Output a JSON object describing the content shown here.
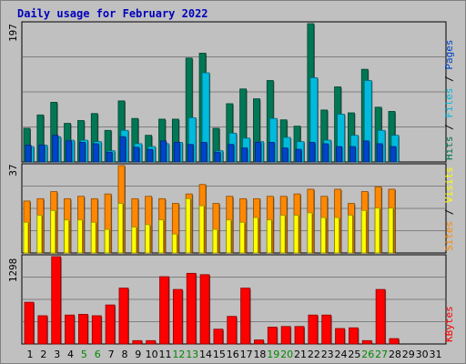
{
  "chart_data": {
    "title": "Daily usage for February 2022",
    "type": "bar",
    "categories": [
      "1",
      "2",
      "3",
      "4",
      "5",
      "6",
      "7",
      "8",
      "9",
      "10",
      "11",
      "12",
      "13",
      "14",
      "15",
      "16",
      "17",
      "18",
      "19",
      "20",
      "21",
      "22",
      "23",
      "24",
      "25",
      "26",
      "27",
      "28",
      "29",
      "30",
      "31"
    ],
    "weekend_color": "#008800",
    "weekend_days": [
      "5",
      "6",
      "12",
      "13",
      "19",
      "20",
      "26",
      "27"
    ],
    "colors": {
      "hits": "#007755",
      "files": "#00bbdd",
      "pages": "#0044cc",
      "visits": "#ffff00",
      "sites": "#ff8800",
      "kbytes": "#ff0000",
      "background": "#c0c0c0",
      "text": "#0000bb"
    },
    "panels": [
      {
        "id": "hits",
        "max_label": "197",
        "ylim": [
          0,
          197
        ],
        "legend": [
          {
            "text": "Hits",
            "color": "#007755"
          },
          {
            "text": "Files",
            "color": "#00bbdd"
          },
          {
            "text": "Pages",
            "color": "#0044cc"
          }
        ],
        "series": [
          {
            "name": "Hits",
            "color": "#007755",
            "values": [
              48,
              67,
              85,
              55,
              59,
              69,
              45,
              87,
              62,
              38,
              61,
              61,
              148,
              155,
              48,
              83,
              104,
              90,
              116,
              60,
              51,
              197,
              74,
              107,
              70,
              132,
              78,
              72,
              0,
              0,
              0
            ]
          },
          {
            "name": "Files",
            "color": "#00bbdd",
            "values": [
              22,
              24,
              36,
              31,
              31,
              29,
              16,
              45,
              26,
              22,
              26,
              28,
              63,
              127,
              16,
              41,
              34,
              29,
              62,
              35,
              29,
              120,
              31,
              68,
              38,
              116,
              45,
              38,
              0,
              0,
              0
            ]
          },
          {
            "name": "Pages",
            "color": "#0044cc",
            "values": [
              24,
              24,
              38,
              30,
              28,
              26,
              14,
              36,
              21,
              18,
              30,
              28,
              25,
              28,
              14,
              25,
              20,
              28,
              28,
              20,
              18,
              28,
              26,
              22,
              22,
              30,
              26,
              22,
              0,
              0,
              0
            ]
          }
        ]
      },
      {
        "id": "sites",
        "max_label": "37",
        "ylim": [
          0,
          37
        ],
        "legend": [
          {
            "text": "Sites",
            "color": "#ff8800"
          },
          {
            "text": "Visits",
            "color": "#ffff00"
          }
        ],
        "series": [
          {
            "name": "Sites",
            "color": "#ff8800",
            "values": [
              22,
              23,
              26,
              23,
              24,
              23,
              25,
              37,
              23,
              24,
              23,
              21,
              25,
              29,
              21,
              24,
              23,
              23,
              24,
              24,
              25,
              27,
              24,
              27,
              21,
              26,
              28,
              27,
              0,
              0,
              0
            ]
          },
          {
            "name": "Visits",
            "color": "#ffff00",
            "values": [
              13,
              16,
              18,
              14,
              14,
              13,
              10,
              21,
              11,
              12,
              14,
              8,
              23,
              20,
              10,
              14,
              13,
              15,
              14,
              16,
              16,
              17,
              15,
              15,
              16,
              18,
              19,
              19,
              0,
              0,
              0
            ]
          }
        ]
      },
      {
        "id": "kbytes",
        "max_label": "1298",
        "ylim": [
          0,
          1298
        ],
        "legend": [
          {
            "text": "KBytes",
            "color": "#ff0000"
          }
        ],
        "series": [
          {
            "name": "KBytes",
            "color": "#ff0000",
            "values": [
              620,
              420,
              1298,
              430,
              440,
              420,
              580,
              830,
              50,
              50,
              1000,
              810,
              1050,
              1030,
              220,
              410,
              830,
              60,
              250,
              260,
              260,
              430,
              430,
              230,
              240,
              50,
              810,
              80,
              0,
              0,
              0
            ]
          }
        ]
      }
    ]
  }
}
